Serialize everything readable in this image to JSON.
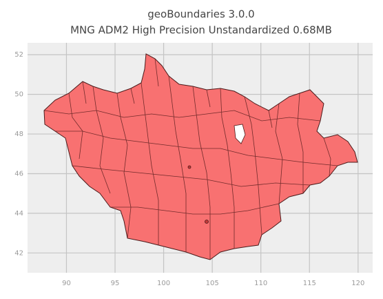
{
  "chart_data": {
    "type": "map",
    "title": "geoBoundaries 3.0.0",
    "subtitle": "MNG ADM2 High Precision Unstandardized 0.68MB",
    "xlim": [
      86.0,
      121.5
    ],
    "ylim": [
      41.0,
      52.6
    ],
    "xticks": [
      90,
      95,
      100,
      105,
      110,
      115,
      120
    ],
    "yticks": [
      42,
      44,
      46,
      48,
      50,
      52
    ],
    "grid": true,
    "color": "#f87171"
  }
}
